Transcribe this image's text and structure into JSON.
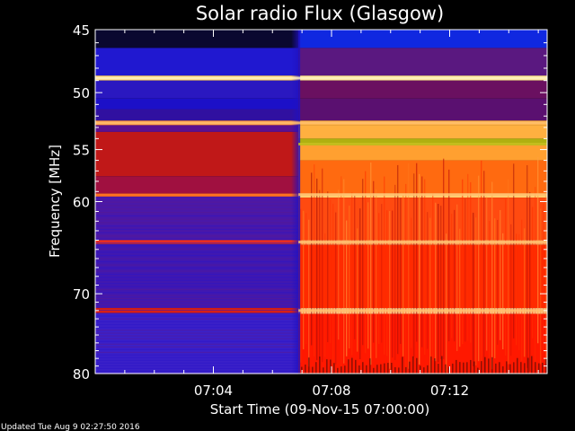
{
  "chart_data": {
    "type": "heatmap",
    "title": "Solar radio Flux (Glasgow)",
    "xlabel": "Start Time (09-Nov-15 07:00:00)",
    "ylabel": "Frequency [MHz]",
    "x_unit": "minutes after 07:00:00",
    "xlim": [
      0,
      15.3
    ],
    "ylim": [
      45,
      80
    ],
    "y_scale": "log",
    "y_inverted": true,
    "x_ticks": [
      {
        "value": 4,
        "label": "07:04"
      },
      {
        "value": 8,
        "label": "07:08"
      },
      {
        "value": 12,
        "label": "07:12"
      }
    ],
    "y_ticks": [
      {
        "value": 45,
        "label": "45"
      },
      {
        "value": 50,
        "label": "50"
      },
      {
        "value": 55,
        "label": "55"
      },
      {
        "value": 60,
        "label": "60"
      },
      {
        "value": 70,
        "label": "70"
      },
      {
        "value": 80,
        "label": "80"
      }
    ],
    "colormap": [
      "#000040",
      "#1a10d8",
      "#3a1ab0",
      "#7a1060",
      "#c01010",
      "#ff2000",
      "#ff6a10",
      "#ffb040",
      "#ffe090"
    ],
    "background_transition_minute": 7.0,
    "bright_band_mhz": [
      48.8,
      52.6,
      54.5,
      59.3,
      64.2,
      72.0
    ]
  },
  "footer": {
    "updated": "Updated Tue Aug  9 02:27:50 2016"
  }
}
